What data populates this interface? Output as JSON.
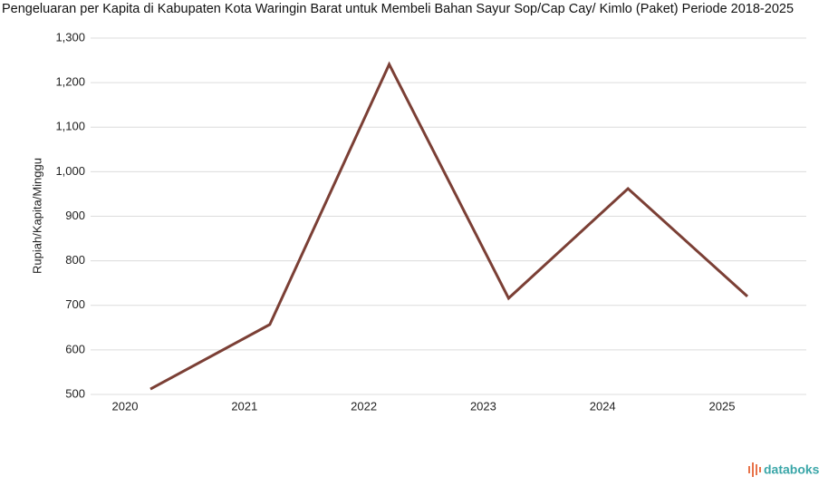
{
  "chart_data": {
    "type": "line",
    "title": "Pengeluaran per Kapita di Kabupaten Kota Waringin Barat untuk Membeli Bahan Sayur Sop/Cap Cay/ Kimlo (Paket) Periode 2018-2025",
    "y_label": "Rupiah/Kapita/Minggu",
    "categories": [
      "2020",
      "2021",
      "2022",
      "2023",
      "2024",
      "2025"
    ],
    "series": [
      {
        "name": "Pengeluaran per Kapita",
        "color": "#7b3f35",
        "values": [
          512,
          657,
          1241,
          716,
          962,
          720
        ]
      }
    ],
    "ylim": [
      500,
      1300
    ],
    "yticks": [
      500,
      600,
      700,
      800,
      900,
      {
        "value": 1000,
        "label": "1,000"
      },
      {
        "value": 1100,
        "label": "1,100"
      },
      {
        "value": 1200,
        "label": "1,200"
      },
      {
        "value": 1300,
        "label": "1,300"
      }
    ],
    "grid": true
  },
  "brand": "databoks"
}
